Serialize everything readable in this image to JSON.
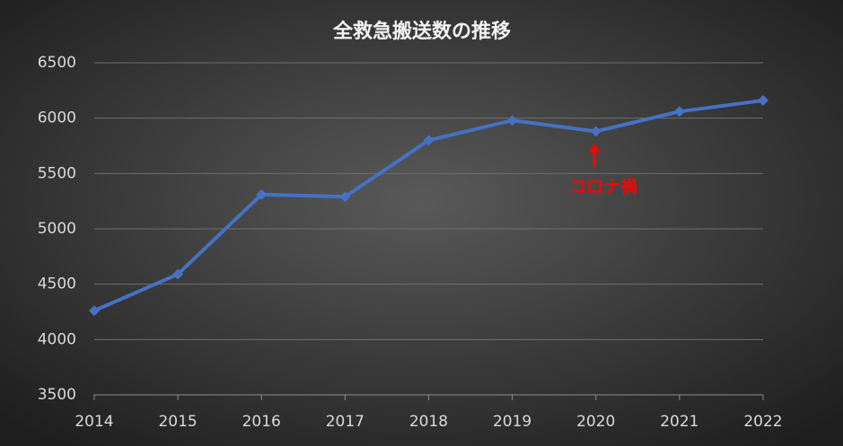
{
  "chart_data": {
    "type": "line",
    "title": "全救急搬送数の推移",
    "categories": [
      "2014",
      "2015",
      "2016",
      "2017",
      "2018",
      "2019",
      "2020",
      "2021",
      "2022"
    ],
    "values": [
      4260,
      4590,
      5310,
      5290,
      5800,
      5980,
      5880,
      6060,
      6160
    ],
    "color": "#4472c4",
    "ylim": [
      3500,
      6500
    ],
    "yticks": [
      3500,
      4000,
      4500,
      5000,
      5500,
      6000,
      6500
    ],
    "grid": true,
    "annotations": [
      {
        "text": "コロナ禍",
        "color": "#ff0000"
      }
    ]
  }
}
